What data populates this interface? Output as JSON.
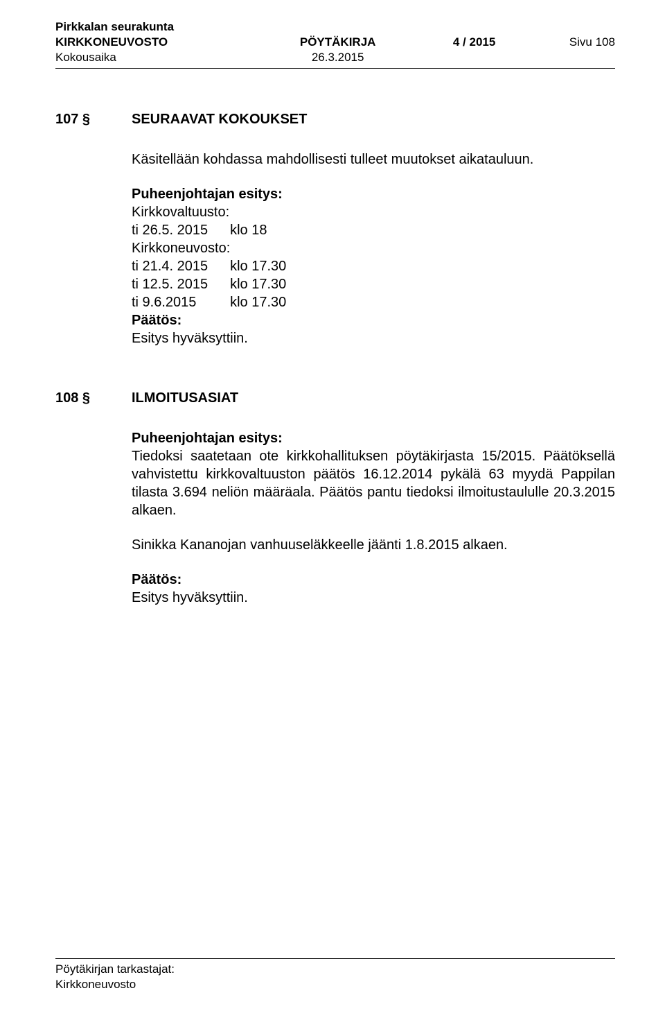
{
  "header": {
    "org": "Pirkkalan seurakunta",
    "body": "KIRKKONEUVOSTO",
    "doctype": "PÖYTÄKIRJA",
    "docnum": "4 / 2015",
    "page": "Sivu 108",
    "meeting_label": "Kokousaika",
    "meeting_date": "26.3.2015"
  },
  "section107": {
    "num": "107 §",
    "title": "SEURAAVAT KOKOUKSET",
    "intro": "Käsitellään kohdassa mahdollisesti tulleet muutokset aikatauluun.",
    "proposal_label": "Puheenjohtajan esitys:",
    "kv_label": "Kirkkovaltuusto:",
    "kv_rows": [
      {
        "date": "ti 26.5. 2015",
        "time": "klo 18"
      }
    ],
    "kn_label": "Kirkkoneuvosto:",
    "kn_rows": [
      {
        "date": "ti 21.4. 2015",
        "time": "klo 17.30"
      },
      {
        "date": "ti 12.5. 2015",
        "time": "klo 17.30"
      },
      {
        "date": "ti 9.6.2015",
        "time": "klo 17.30"
      }
    ],
    "decision_label": "Päätös:",
    "decision_text": "Esitys hyväksyttiin."
  },
  "section108": {
    "num": "108 §",
    "title": "ILMOITUSASIAT",
    "proposal_label": "Puheenjohtajan esitys:",
    "para1": "Tiedoksi saatetaan ote kirkkohallituksen pöytäkirjasta 15/2015. Päätöksellä vahvistettu kirkkovaltuuston päätös 16.12.2014 pykälä 63 myydä Pappilan tilasta 3.694 neliön määräala. Päätös pantu tiedoksi ilmoitustaululle 20.3.2015 alkaen.",
    "para2": "Sinikka Kananojan vanhuuseläkkeelle jäänti 1.8.2015 alkaen.",
    "decision_label": "Päätös:",
    "decision_text": "Esitys hyväksyttiin."
  },
  "footer": {
    "line1": "Pöytäkirjan tarkastajat:",
    "line2": "Kirkkoneuvosto"
  }
}
